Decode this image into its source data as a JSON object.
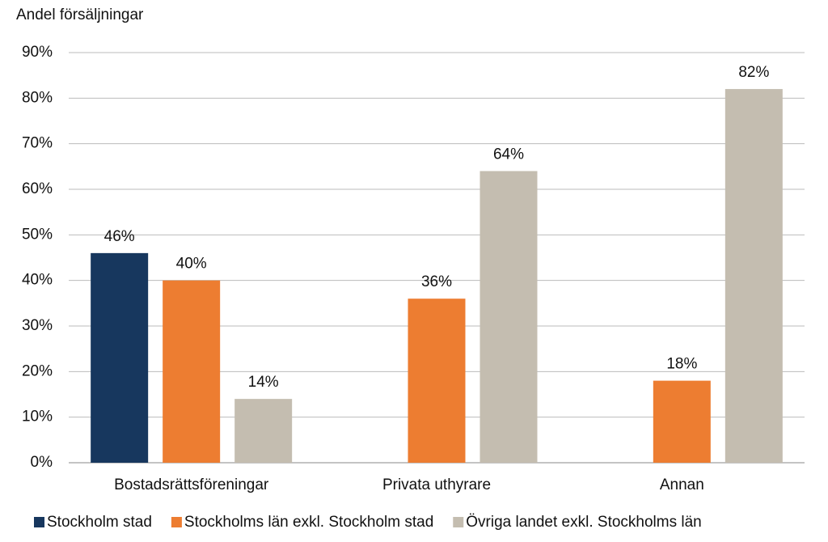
{
  "chart_data": {
    "type": "bar",
    "y_label": "Andel försäljningar",
    "categories": [
      "Bostadsrättsföreningar",
      "Privata uthyrare",
      "Annan"
    ],
    "series": [
      {
        "name": "Stockholm stad",
        "color": "#17375e",
        "values": [
          46,
          null,
          null
        ],
        "value_labels": [
          "46%",
          null,
          null
        ]
      },
      {
        "name": "Stockholms län exkl. Stockholm stad",
        "color": "#ed7d31",
        "values": [
          40,
          36,
          18
        ],
        "value_labels": [
          "40%",
          "36%",
          "18%"
        ]
      },
      {
        "name": "Övriga landet exkl. Stockholms län",
        "color": "#c4bdb0",
        "values": [
          14,
          64,
          82
        ],
        "value_labels": [
          "14%",
          "64%",
          "82%"
        ]
      }
    ],
    "ylim": [
      0,
      90
    ],
    "yticks": [
      {
        "value": 0,
        "label": "0%"
      },
      {
        "value": 10,
        "label": "10%"
      },
      {
        "value": 20,
        "label": "20%"
      },
      {
        "value": 30,
        "label": "30%"
      },
      {
        "value": 40,
        "label": "40%"
      },
      {
        "value": 50,
        "label": "50%"
      },
      {
        "value": 60,
        "label": "60%"
      },
      {
        "value": 70,
        "label": "70%"
      },
      {
        "value": 80,
        "label": "80%"
      },
      {
        "value": 90,
        "label": "90%"
      }
    ],
    "grid": true,
    "legend": "bottom"
  }
}
